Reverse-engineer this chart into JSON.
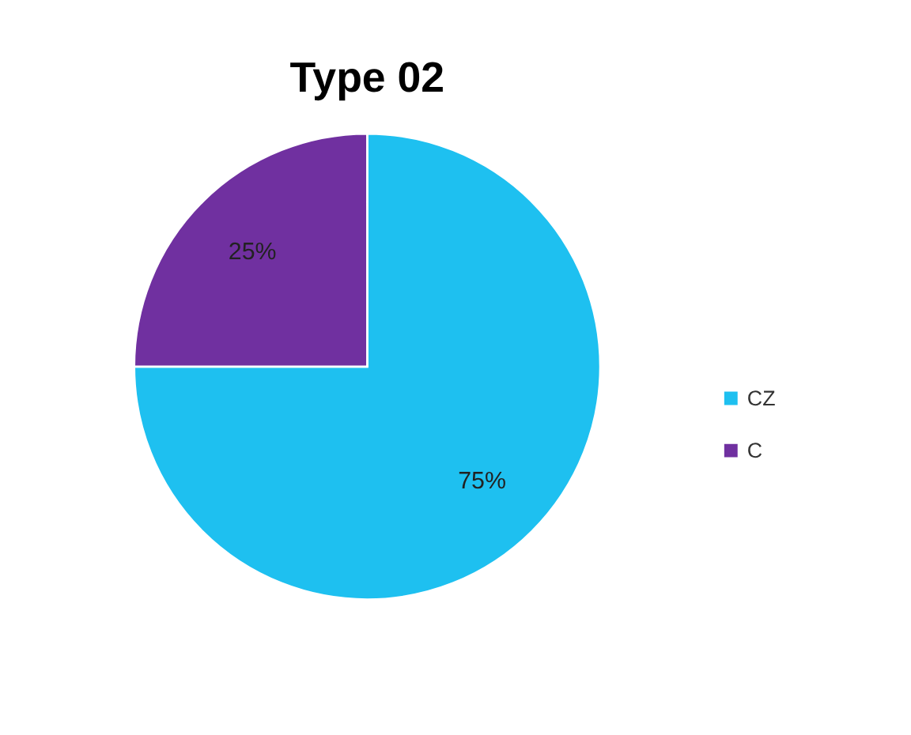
{
  "chart_data": {
    "type": "pie",
    "title": "Type 02",
    "categories": [
      "CZ",
      "C"
    ],
    "values": [
      75,
      25
    ],
    "colors": [
      "#1ec0f0",
      "#7030a0"
    ],
    "value_labels": [
      "75%",
      "25%"
    ],
    "legend": "right"
  }
}
